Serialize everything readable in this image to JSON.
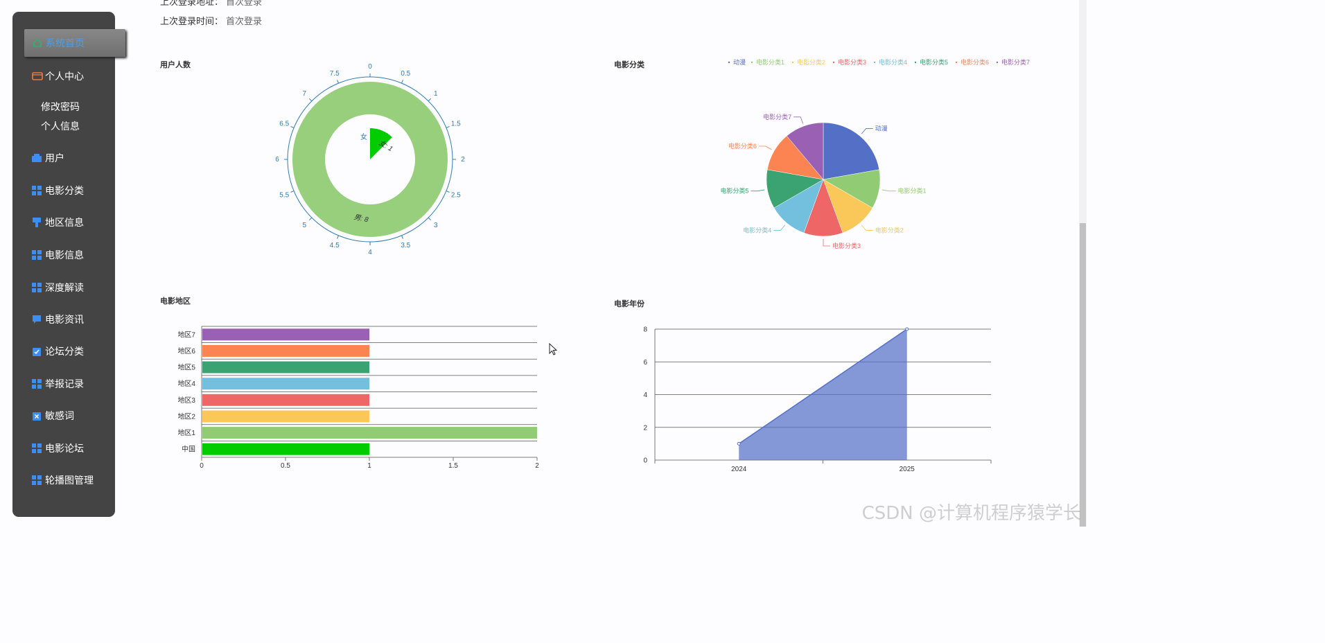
{
  "sidebar": {
    "items": [
      {
        "label": "系统首页",
        "icon": "home-icon"
      },
      {
        "label": "个人中心",
        "icon": "wallet-icon"
      },
      {
        "label": "用户",
        "icon": "user-folder-icon"
      },
      {
        "label": "电影分类",
        "icon": "grid-icon"
      },
      {
        "label": "地区信息",
        "icon": "brush-icon"
      },
      {
        "label": "电影信息",
        "icon": "grid-icon"
      },
      {
        "label": "深度解读",
        "icon": "grid-icon"
      },
      {
        "label": "电影资讯",
        "icon": "chat-icon"
      },
      {
        "label": "论坛分类",
        "icon": "clipboard-check-icon"
      },
      {
        "label": "举报记录",
        "icon": "grid-icon"
      },
      {
        "label": "敏感词",
        "icon": "clipboard-x-icon"
      },
      {
        "label": "电影论坛",
        "icon": "grid-icon"
      },
      {
        "label": "轮播图管理",
        "icon": "grid-icon"
      }
    ],
    "subitems": [
      {
        "label": "修改密码"
      },
      {
        "label": "个人信息"
      }
    ]
  },
  "header": {
    "last_login_addr_label": "上次登录地址：",
    "last_login_addr_value": "首次登录",
    "last_login_time_label": "上次登录时间：",
    "last_login_time_value": "首次登录"
  },
  "colors": {
    "sidebar_bg": "#444444",
    "active_text": "#4aa0e8",
    "palette": [
      "#5470c6",
      "#91cc75",
      "#fac858",
      "#ee6666",
      "#73c0de",
      "#3ba272",
      "#fc8452",
      "#9a60b4"
    ],
    "bright_green": "#00cc00"
  },
  "charts": {
    "users": {
      "title": "用户人数",
      "chart_data": {
        "type": "pie",
        "subtype": "polar-rose",
        "categories": [
          "女",
          "男"
        ],
        "values": [
          1,
          8
        ],
        "data_labels": [
          "女: 1",
          "男: 8"
        ],
        "angle_ticks": [
          "0",
          "0.5",
          "1",
          "1.5",
          "2",
          "2.5",
          "3",
          "3.5",
          "4",
          "4.5",
          "5",
          "5.5",
          "6",
          "6.5",
          "7",
          "7.5"
        ],
        "angle_max": 8
      }
    },
    "categories": {
      "title": "电影分类",
      "chart_data": {
        "type": "pie",
        "categories": [
          "动漫",
          "电影分类1",
          "电影分类2",
          "电影分类3",
          "电影分类4",
          "电影分类5",
          "电影分类6",
          "电影分类7"
        ],
        "values": [
          2,
          1,
          1,
          1,
          1,
          1,
          1,
          1
        ],
        "legend": "top-right"
      }
    },
    "regions": {
      "title": "电影地区",
      "chart_data": {
        "type": "bar",
        "orientation": "horizontal",
        "categories": [
          "中国",
          "地区1",
          "地区2",
          "地区3",
          "地区4",
          "地区5",
          "地区6",
          "地区7"
        ],
        "values": [
          1,
          2,
          1,
          1,
          1,
          1,
          1,
          1
        ],
        "xlim": [
          0,
          2
        ],
        "x_ticks": [
          "0",
          "0.5",
          "1",
          "1.5",
          "2"
        ]
      }
    },
    "years": {
      "title": "电影年份",
      "chart_data": {
        "type": "area",
        "categories": [
          "2024",
          "2025"
        ],
        "values": [
          1,
          8
        ],
        "ylim": [
          0,
          8
        ],
        "y_ticks": [
          "0",
          "2",
          "4",
          "6",
          "8"
        ]
      }
    }
  },
  "watermark": "CSDN @计算机程序猿学长"
}
